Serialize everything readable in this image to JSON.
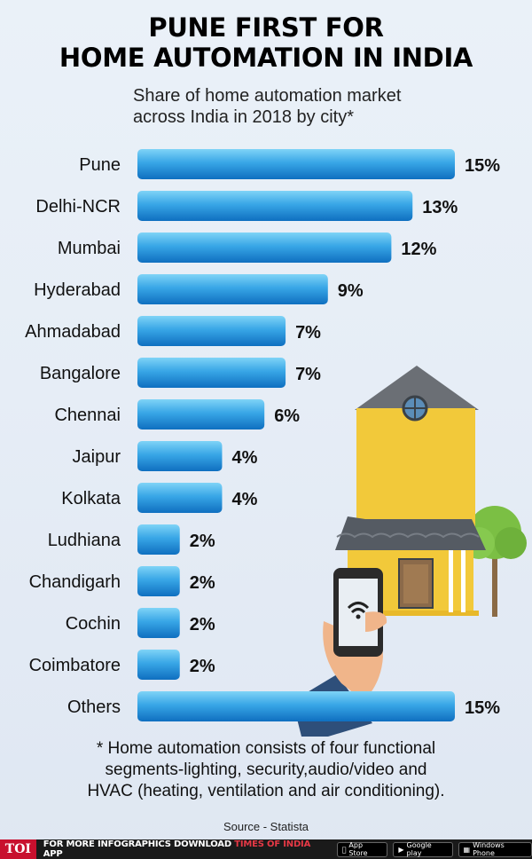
{
  "title_line1": "PUNE FIRST FOR",
  "title_line2": "HOME AUTOMATION IN INDIA",
  "subtitle_line1": "Share of home automation market",
  "subtitle_line2": "across India in 2018 by city*",
  "note_line1": "* Home automation consists of four functional",
  "note_line2": "segments-lighting, security,audio/video and",
  "note_line3": "HVAC (heating, ventilation and air conditioning).",
  "source": "Source - Statista",
  "footer": {
    "logo": "TOI",
    "text_prefix": "FOR MORE  INFOGRAPHICS DOWNLOAD",
    "brand": "TIMES OF INDIA",
    "text_suffix": "APP",
    "stores": [
      "App Store",
      "Google play",
      "Windows Phone"
    ]
  },
  "colors": {
    "bar_light": "#5fc3f0",
    "bar_dark": "#1177c9",
    "house_wall": "#f2c93a",
    "roof": "#555b63"
  },
  "chart_data": {
    "type": "bar",
    "orientation": "horizontal",
    "categories": [
      "Pune",
      "Delhi-NCR",
      "Mumbai",
      "Hyderabad",
      "Ahmadabad",
      "Bangalore",
      "Chennai",
      "Jaipur",
      "Kolkata",
      "Ludhiana",
      "Chandigarh",
      "Cochin",
      "Coimbatore",
      "Others"
    ],
    "values": [
      15,
      13,
      12,
      9,
      7,
      7,
      6,
      4,
      4,
      2,
      2,
      2,
      2,
      15
    ],
    "value_labels": [
      "15%",
      "13%",
      "12%",
      "9%",
      "7%",
      "7%",
      "6%",
      "4%",
      "4%",
      "2%",
      "2%",
      "2%",
      "2%",
      "15%"
    ],
    "unit": "%",
    "xlim": [
      0,
      15
    ],
    "grid": false
  }
}
